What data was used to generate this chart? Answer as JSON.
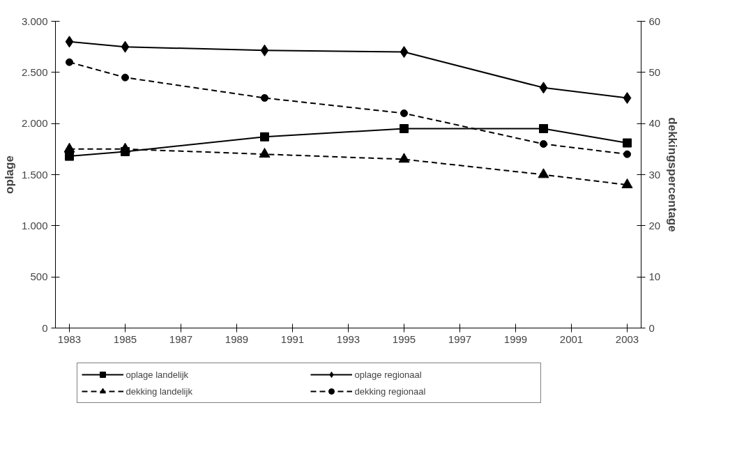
{
  "chart_data": {
    "type": "line",
    "ylabel": "oplage",
    "y2label": "dekkingspercentage",
    "x": [
      1983,
      1985,
      1990,
      1995,
      2000,
      2003
    ],
    "xlim": [
      1982.5,
      2003.5
    ],
    "xticks": [
      1983,
      1985,
      1987,
      1989,
      1991,
      1993,
      1995,
      1997,
      1999,
      2001,
      2003
    ],
    "ylim": [
      0,
      3000
    ],
    "yticks": [
      0,
      500,
      {
        "value": 1000,
        "label": "1.000"
      },
      {
        "value": 1500,
        "label": "1.500"
      },
      {
        "value": 2000,
        "label": "2.000"
      },
      {
        "value": 2500,
        "label": "2.500"
      },
      {
        "value": 3000,
        "label": "3.000"
      }
    ],
    "y2lim": [
      0,
      60
    ],
    "y2ticks": [
      0,
      10,
      20,
      30,
      40,
      50,
      60
    ],
    "grid": false,
    "legend": "bottom",
    "series": [
      {
        "name": "oplage landelijk",
        "color": "#000000",
        "marker": "square",
        "line_style": "solid",
        "values": [
          1680,
          1725,
          1870,
          1950,
          1950,
          1810
        ]
      },
      {
        "name": "oplage regionaal",
        "color": "#000000",
        "marker": "diamond",
        "line_style": "solid",
        "values": [
          2800,
          2750,
          2715,
          2700,
          2350,
          2250
        ]
      },
      {
        "name": "dekking landelijk",
        "color": "#000000",
        "marker": "triangle",
        "line_style": "dashed",
        "axis": "y2",
        "values": [
          35,
          35,
          34,
          33,
          30,
          28
        ]
      },
      {
        "name": "dekking regionaal",
        "color": "#000000",
        "marker": "circle",
        "line_style": "dashed",
        "axis": "y2",
        "values": [
          52,
          49,
          45,
          42,
          36,
          34
        ]
      }
    ]
  }
}
